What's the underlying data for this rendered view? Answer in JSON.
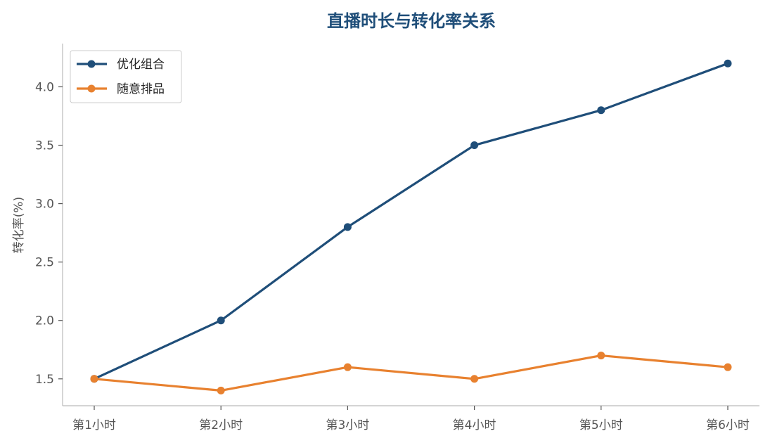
{
  "chart_data": {
    "type": "line",
    "title": "直播时长与转化率关系",
    "xlabel": "",
    "ylabel": "转化率(%)",
    "categories": [
      "第1小时",
      "第2小时",
      "第3小时",
      "第4小时",
      "第5小时",
      "第6小时"
    ],
    "series": [
      {
        "name": "优化组合",
        "color": "#1f4e79",
        "values": [
          1.5,
          2.0,
          2.8,
          3.5,
          3.8,
          4.2
        ]
      },
      {
        "name": "随意排品",
        "color": "#e8812f",
        "values": [
          1.5,
          1.4,
          1.6,
          1.5,
          1.7,
          1.6
        ]
      }
    ],
    "ylim": [
      1.27,
      4.37
    ],
    "yticks": [
      "1.5",
      "2.0",
      "2.5",
      "3.0",
      "3.5",
      "4.0"
    ],
    "grid": false,
    "legend_position": "top-left"
  }
}
